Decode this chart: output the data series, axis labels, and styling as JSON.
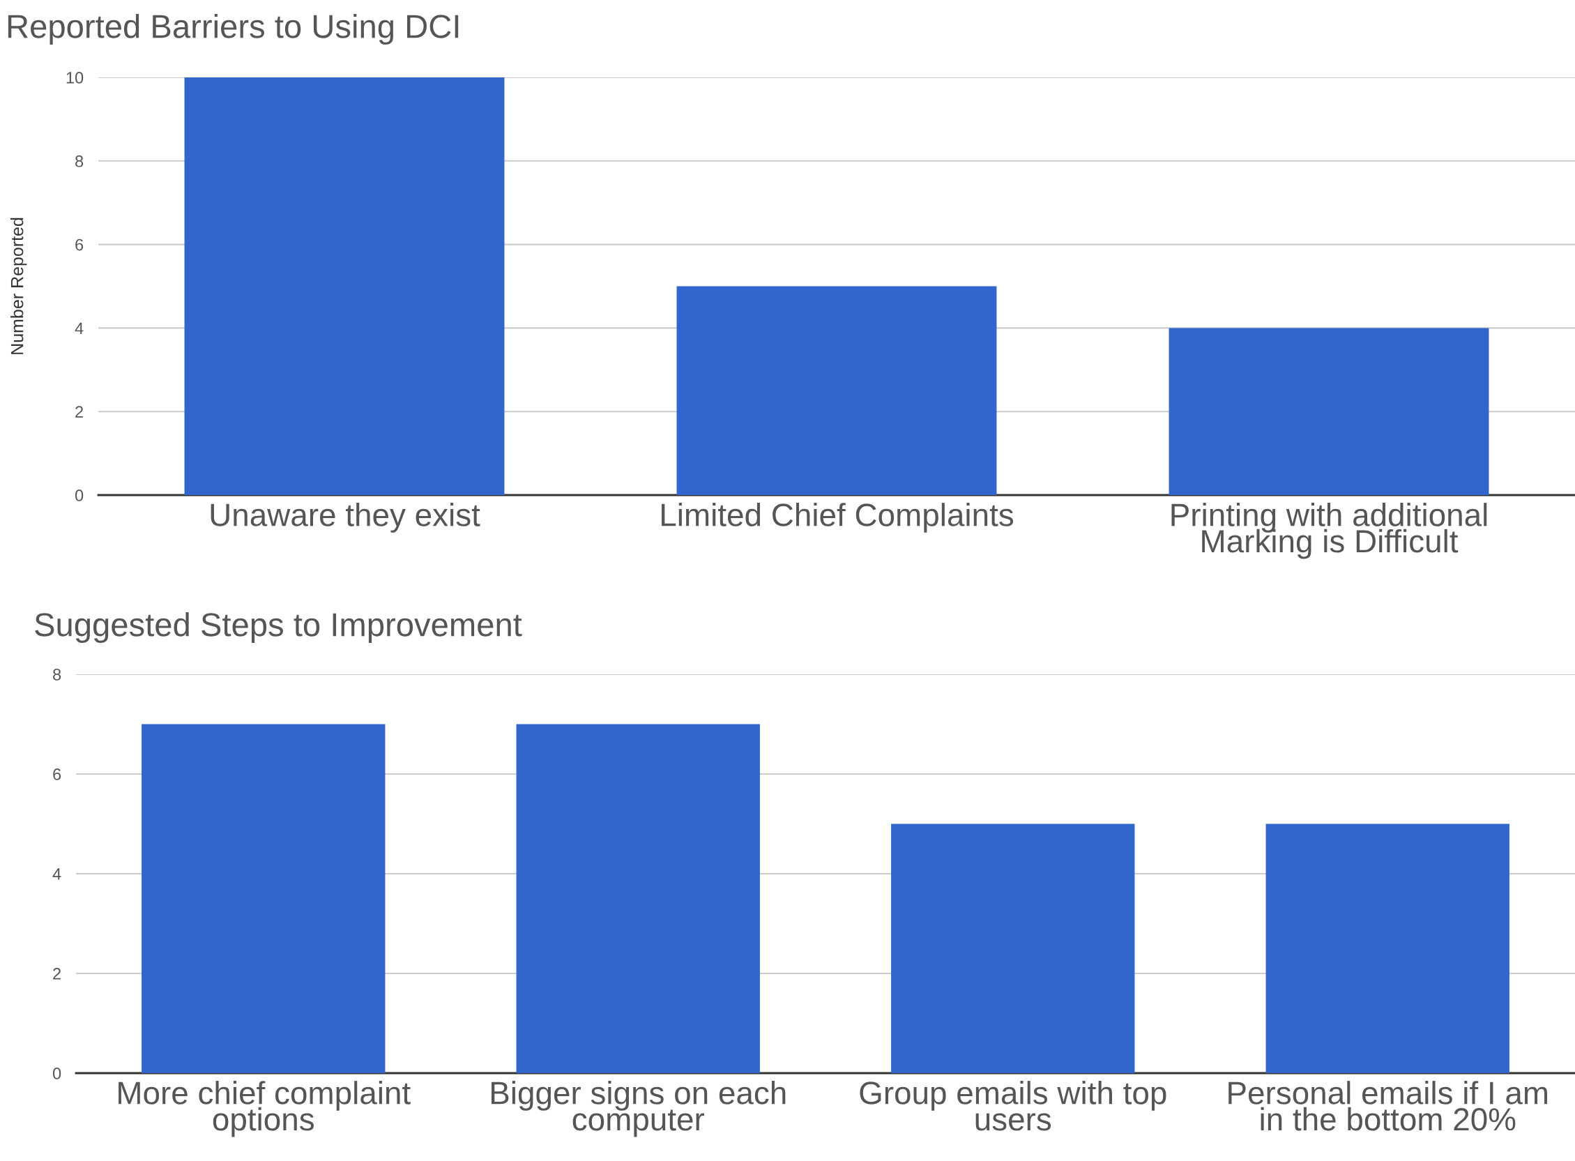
{
  "chart_data": [
    {
      "type": "bar",
      "title": "Reported Barriers to Using DCI",
      "ylabel": "Number Reported",
      "categories": [
        "Unaware they exist",
        "Limited Chief Complaints",
        "Printing with additional\nMarking is Difficult"
      ],
      "values": [
        10,
        5,
        4
      ],
      "color": "#3366cc",
      "ylim": [
        0,
        10
      ],
      "yticks": [
        0,
        2,
        4,
        6,
        8,
        10
      ],
      "grid": "y"
    },
    {
      "type": "bar",
      "title": "Suggested Steps to Improvement",
      "categories": [
        "More chief complaint\noptions",
        "Bigger signs on each\ncomputer",
        "Group emails with top\nusers",
        "Personal emails if I am\nin the bottom 20%"
      ],
      "values": [
        7,
        7,
        5,
        5
      ],
      "color": "#3366cc",
      "ylim": [
        0,
        8
      ],
      "yticks": [
        0,
        2,
        4,
        6,
        8
      ],
      "grid": "y"
    }
  ]
}
